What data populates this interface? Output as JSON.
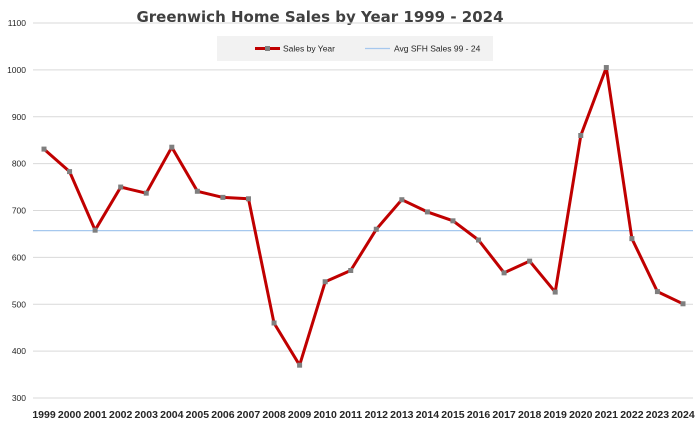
{
  "chart_data": {
    "type": "line",
    "title": "Greenwich Home Sales by Year 1999 - 2024",
    "xlabel": "",
    "ylabel": "",
    "x": [
      "1999",
      "2000",
      "2001",
      "2002",
      "2003",
      "2004",
      "2005",
      "2006",
      "2007",
      "2008",
      "2009",
      "2010",
      "2011",
      "2012",
      "2013",
      "2014",
      "2015",
      "2016",
      "2017",
      "2018",
      "2019",
      "2020",
      "2021",
      "2022",
      "2023",
      "2024"
    ],
    "ylim": [
      300,
      1100
    ],
    "yticks": [
      "300",
      "400",
      "500",
      "600",
      "700",
      "800",
      "900",
      "1000",
      "1100"
    ],
    "grid": true,
    "legend_position": "top",
    "series": [
      {
        "name": "Sales by Year",
        "color": "#c00000",
        "marker_color": "#7f7f7f",
        "values": [
          831,
          783,
          658,
          750,
          737,
          835,
          741,
          728,
          725,
          460,
          370,
          548,
          572,
          660,
          723,
          697,
          678,
          637,
          567,
          592,
          526,
          860,
          1005,
          640,
          527,
          501
        ]
      },
      {
        "name": "Avg SFH Sales 99 - 24",
        "color": "#a6c8ee",
        "style": "flat",
        "values": [
          657,
          657,
          657,
          657,
          657,
          657,
          657,
          657,
          657,
          657,
          657,
          657,
          657,
          657,
          657,
          657,
          657,
          657,
          657,
          657,
          657,
          657,
          657,
          657,
          657,
          657
        ]
      }
    ]
  }
}
